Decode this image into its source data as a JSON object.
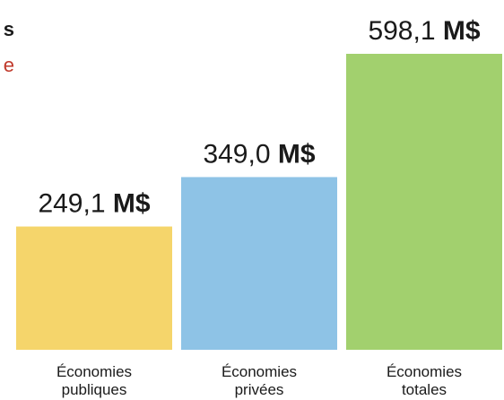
{
  "partial_title": {
    "line1": "s",
    "line2": "e",
    "line2_color": "#c0392b"
  },
  "chart_data": {
    "type": "bar",
    "categories": [
      [
        "Économies",
        "publiques"
      ],
      [
        "Économies",
        "privées"
      ],
      [
        "Économies",
        "totales"
      ]
    ],
    "values": [
      249.1,
      349.0,
      598.1
    ],
    "value_labels": [
      {
        "number": "249,1",
        "unit": "M$"
      },
      {
        "number": "349,0",
        "unit": "M$"
      },
      {
        "number": "598,1",
        "unit": "M$"
      }
    ],
    "colors": [
      "#f5d56b",
      "#8ec3e6",
      "#a2d06e"
    ],
    "ylim": [
      0,
      598.1
    ],
    "grid": false,
    "legend": "none"
  }
}
